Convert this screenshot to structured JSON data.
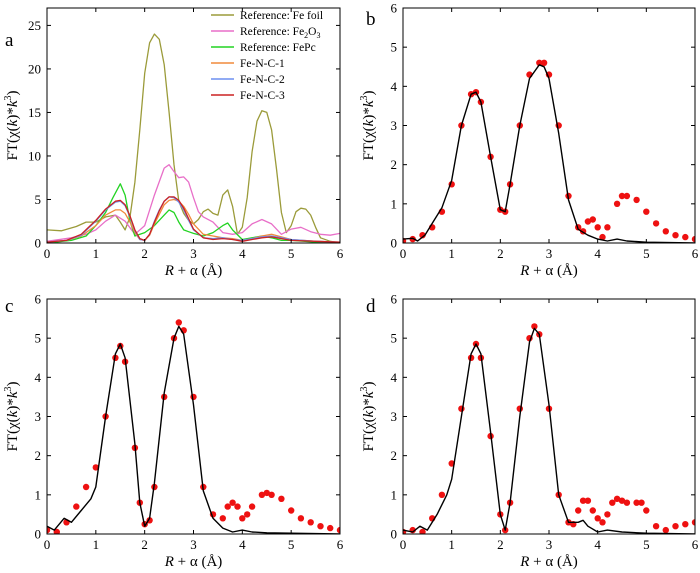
{
  "chart_data": [
    {
      "panel": "a",
      "type": "line",
      "xlabel_main": "R",
      "xlabel_rest": " + α (Å)",
      "ylabel_main": "FT(χ(",
      "ylabel_k": "k",
      "ylabel_mid": ")*",
      "ylabel_k2": "k",
      "ylabel_exp": "3",
      "ylabel_end": ")",
      "xlim": [
        0,
        6
      ],
      "ylim": [
        0,
        27
      ],
      "xticks": [
        0,
        1,
        2,
        3,
        4,
        5,
        6
      ],
      "yticks": [
        0,
        5,
        10,
        15,
        20,
        25
      ],
      "legend_position": "top-right",
      "series": [
        {
          "name": "Reference: Fe foil",
          "color": "#9b9b3a",
          "x": [
            0,
            0.3,
            0.6,
            0.8,
            1.0,
            1.2,
            1.4,
            1.5,
            1.6,
            1.7,
            1.8,
            1.9,
            2.0,
            2.1,
            2.2,
            2.3,
            2.4,
            2.5,
            2.6,
            2.7,
            2.8,
            2.9,
            3.0,
            3.1,
            3.2,
            3.3,
            3.4,
            3.5,
            3.6,
            3.7,
            3.8,
            3.9,
            4.0,
            4.1,
            4.2,
            4.3,
            4.4,
            4.5,
            4.6,
            4.7,
            4.8,
            4.9,
            5.0,
            5.1,
            5.2,
            5.3,
            5.4,
            5.5,
            5.6,
            5.8,
            6.0
          ],
          "y": [
            1.5,
            1.4,
            1.9,
            2.4,
            2.4,
            3.0,
            3.2,
            2.4,
            1.5,
            3.0,
            7.0,
            13.0,
            19.5,
            23.0,
            24.0,
            23.4,
            20.5,
            15.0,
            9.0,
            4.8,
            3.4,
            2.6,
            2.2,
            2.7,
            3.6,
            3.9,
            3.4,
            3.2,
            5.5,
            6.1,
            4.2,
            1.0,
            1.8,
            5.2,
            10.5,
            14.0,
            15.2,
            15.0,
            13.0,
            8.5,
            3.5,
            1.2,
            2.0,
            3.6,
            4.0,
            3.9,
            3.2,
            1.8,
            0.6,
            0.2,
            0.0
          ]
        },
        {
          "name": "Reference: Fe2O3",
          "display_name": "Reference: Fe",
          "name_sub": "2",
          "name_rest": "O",
          "name_sub2": "3",
          "color": "#e86fc8",
          "x": [
            0,
            0.5,
            0.8,
            1.0,
            1.2,
            1.4,
            1.6,
            1.8,
            2.0,
            2.2,
            2.4,
            2.5,
            2.6,
            2.7,
            2.8,
            2.9,
            3.0,
            3.1,
            3.2,
            3.4,
            3.6,
            3.8,
            4.0,
            4.2,
            4.4,
            4.6,
            4.8,
            5.0,
            5.2,
            5.4,
            5.6,
            5.8,
            6.0
          ],
          "y": [
            0.2,
            0.6,
            1.0,
            1.5,
            2.5,
            3.2,
            2.5,
            1.0,
            2.0,
            5.5,
            8.6,
            9.0,
            8.2,
            7.5,
            7.6,
            7.0,
            5.2,
            3.6,
            3.0,
            2.4,
            1.2,
            1.0,
            1.2,
            2.2,
            2.7,
            2.2,
            1.0,
            1.6,
            1.8,
            1.3,
            1.0,
            0.9,
            1.1
          ]
        },
        {
          "name": "Reference: FePc",
          "color": "#22d322",
          "x": [
            0,
            0.5,
            0.8,
            1.0,
            1.2,
            1.35,
            1.5,
            1.6,
            1.7,
            1.8,
            2.0,
            2.2,
            2.4,
            2.5,
            2.6,
            2.7,
            2.8,
            2.9,
            3.0,
            3.2,
            3.4,
            3.6,
            3.7,
            3.8,
            4.0,
            4.2,
            4.4,
            4.6,
            4.8,
            5.0,
            5.5,
            6.0
          ],
          "y": [
            0.0,
            0.3,
            0.8,
            2.0,
            3.5,
            5.2,
            6.8,
            5.5,
            2.5,
            0.8,
            1.2,
            2.0,
            3.2,
            3.8,
            3.5,
            2.4,
            1.5,
            1.3,
            1.1,
            0.8,
            1.2,
            2.0,
            2.3,
            1.5,
            0.4,
            0.6,
            0.8,
            0.6,
            0.3,
            0.3,
            0.1,
            0.0
          ]
        },
        {
          "name": "Fe-N-C-1",
          "color": "#f08a3c",
          "x": [
            0,
            0.4,
            0.7,
            1.0,
            1.2,
            1.4,
            1.5,
            1.6,
            1.7,
            1.8,
            1.9,
            2.0,
            2.1,
            2.2,
            2.3,
            2.4,
            2.5,
            2.6,
            2.7,
            2.8,
            2.9,
            3.0,
            3.2,
            3.4,
            3.6,
            3.8,
            4.0,
            4.2,
            4.4,
            4.6,
            4.8,
            5.0,
            5.5,
            6.0
          ],
          "y": [
            0.1,
            0.3,
            0.8,
            2.0,
            3.2,
            3.8,
            3.8,
            3.4,
            2.4,
            1.2,
            0.4,
            0.3,
            0.9,
            2.2,
            3.3,
            4.4,
            4.9,
            5.0,
            4.8,
            4.2,
            3.3,
            2.2,
            1.0,
            0.8,
            0.6,
            0.5,
            0.3,
            0.5,
            0.8,
            1.0,
            0.7,
            0.4,
            0.2,
            0.1
          ]
        },
        {
          "name": "Fe-N-C-2",
          "color": "#6d8ff0",
          "x": [
            0,
            0.4,
            0.7,
            1.0,
            1.2,
            1.4,
            1.5,
            1.6,
            1.7,
            1.8,
            1.9,
            2.0,
            2.1,
            2.2,
            2.3,
            2.4,
            2.5,
            2.6,
            2.7,
            2.8,
            2.9,
            3.0,
            3.2,
            3.4,
            3.6,
            3.8,
            4.0,
            4.2,
            4.4,
            4.6,
            4.8,
            5.0,
            5.5,
            6.0
          ],
          "y": [
            0.1,
            0.3,
            0.9,
            2.5,
            3.8,
            4.7,
            4.8,
            4.3,
            3.0,
            1.4,
            0.4,
            0.3,
            1.0,
            2.5,
            3.8,
            4.8,
            5.3,
            5.2,
            4.7,
            3.8,
            2.6,
            1.5,
            0.6,
            0.5,
            0.6,
            0.4,
            0.3,
            0.5,
            0.7,
            0.8,
            0.6,
            0.4,
            0.2,
            0.1
          ]
        },
        {
          "name": "Fe-N-C-3",
          "color": "#cc2222",
          "x": [
            0,
            0.4,
            0.7,
            1.0,
            1.2,
            1.4,
            1.5,
            1.6,
            1.7,
            1.8,
            1.9,
            2.0,
            2.1,
            2.2,
            2.3,
            2.4,
            2.5,
            2.6,
            2.7,
            2.8,
            2.9,
            3.0,
            3.2,
            3.4,
            3.6,
            3.8,
            4.0,
            4.2,
            4.4,
            4.6,
            4.8,
            5.0,
            5.5,
            6.0
          ],
          "y": [
            0.1,
            0.3,
            1.0,
            2.6,
            3.9,
            4.8,
            4.9,
            4.4,
            3.1,
            1.5,
            0.5,
            0.3,
            1.0,
            2.4,
            3.7,
            4.8,
            5.3,
            5.3,
            4.9,
            4.0,
            2.8,
            1.6,
            0.6,
            0.4,
            0.5,
            0.4,
            0.2,
            0.4,
            0.6,
            0.7,
            0.5,
            0.3,
            0.2,
            0.1
          ]
        }
      ]
    },
    {
      "panel": "b",
      "type": "line+scatter",
      "xlabel_main": "R",
      "xlabel_rest": " + α (Å)",
      "ylabel_main": "FT(χ(",
      "ylabel_k": "k",
      "ylabel_mid": ")*",
      "ylabel_k2": "k",
      "ylabel_exp": "3",
      "ylabel_end": ")",
      "xlim": [
        0,
        6
      ],
      "ylim": [
        0,
        6
      ],
      "xticks": [
        0,
        1,
        2,
        3,
        4,
        5,
        6
      ],
      "yticks": [
        0,
        1,
        2,
        3,
        4,
        5,
        6
      ],
      "series": [
        {
          "kind": "points",
          "color": "#ee1111",
          "x": [
            0,
            0.2,
            0.4,
            0.6,
            0.8,
            1.0,
            1.2,
            1.4,
            1.5,
            1.6,
            1.8,
            2.0,
            2.1,
            2.2,
            2.4,
            2.6,
            2.8,
            2.9,
            3.0,
            3.2,
            3.4,
            3.6,
            3.7,
            3.8,
            3.9,
            4.0,
            4.1,
            4.2,
            4.4,
            4.5,
            4.6,
            4.8,
            5.0,
            5.2,
            5.4,
            5.6,
            5.8,
            6.0
          ],
          "y": [
            0.05,
            0.1,
            0.2,
            0.4,
            0.8,
            1.5,
            3.0,
            3.8,
            3.85,
            3.6,
            2.2,
            0.85,
            0.8,
            1.5,
            3.0,
            4.3,
            4.6,
            4.6,
            4.3,
            3.0,
            1.2,
            0.4,
            0.3,
            0.55,
            0.6,
            0.4,
            0.15,
            0.4,
            1.0,
            1.2,
            1.2,
            1.1,
            0.8,
            0.5,
            0.3,
            0.2,
            0.15,
            0.1
          ]
        },
        {
          "kind": "line",
          "color": "#000000",
          "x": [
            0,
            0.2,
            0.3,
            0.45,
            0.6,
            0.8,
            1.0,
            1.2,
            1.4,
            1.5,
            1.6,
            1.8,
            2.0,
            2.1,
            2.2,
            2.4,
            2.6,
            2.8,
            2.9,
            3.0,
            3.2,
            3.4,
            3.6,
            3.8,
            4.0,
            4.2,
            4.4,
            4.6,
            5.0,
            5.5,
            6.0
          ],
          "y": [
            0.1,
            0.12,
            0.05,
            0.2,
            0.5,
            0.9,
            1.6,
            3.0,
            3.8,
            3.85,
            3.6,
            2.2,
            0.85,
            0.8,
            1.5,
            3.0,
            4.2,
            4.55,
            4.5,
            4.2,
            2.8,
            1.1,
            0.35,
            0.2,
            0.1,
            0.05,
            0.1,
            0.05,
            0.02,
            0.01,
            0.0
          ]
        }
      ]
    },
    {
      "panel": "c",
      "type": "line+scatter",
      "xlabel_main": "R",
      "xlabel_rest": " + α (Å)",
      "ylabel_main": "FT(χ(",
      "ylabel_k": "k",
      "ylabel_mid": ")*",
      "ylabel_k2": "k",
      "ylabel_exp": "3",
      "ylabel_end": ")",
      "xlim": [
        0,
        6
      ],
      "ylim": [
        0,
        6
      ],
      "xticks": [
        0,
        1,
        2,
        3,
        4,
        5,
        6
      ],
      "yticks": [
        0,
        1,
        2,
        3,
        4,
        5,
        6
      ],
      "series": [
        {
          "kind": "points",
          "color": "#ee1111",
          "x": [
            0,
            0.2,
            0.4,
            0.6,
            0.8,
            1.0,
            1.2,
            1.4,
            1.5,
            1.6,
            1.8,
            1.9,
            2.0,
            2.1,
            2.2,
            2.4,
            2.6,
            2.7,
            2.8,
            3.0,
            3.2,
            3.4,
            3.6,
            3.7,
            3.8,
            3.9,
            4.0,
            4.1,
            4.2,
            4.4,
            4.5,
            4.6,
            4.8,
            5.0,
            5.2,
            5.4,
            5.6,
            5.8,
            6.0
          ],
          "y": [
            0.1,
            0.05,
            0.3,
            0.7,
            1.2,
            1.7,
            3.0,
            4.5,
            4.8,
            4.4,
            2.2,
            0.8,
            0.25,
            0.35,
            1.2,
            3.5,
            5.0,
            5.4,
            5.2,
            3.5,
            1.2,
            0.5,
            0.4,
            0.7,
            0.8,
            0.7,
            0.4,
            0.5,
            0.7,
            1.0,
            1.05,
            1.0,
            0.9,
            0.6,
            0.4,
            0.3,
            0.2,
            0.15,
            0.1
          ]
        },
        {
          "kind": "line",
          "color": "#000000",
          "x": [
            0,
            0.15,
            0.35,
            0.5,
            0.7,
            0.9,
            1.0,
            1.2,
            1.4,
            1.5,
            1.6,
            1.8,
            1.9,
            2.0,
            2.1,
            2.2,
            2.4,
            2.6,
            2.7,
            2.8,
            3.0,
            3.2,
            3.4,
            3.6,
            3.8,
            4.0,
            4.2,
            4.5,
            5.0,
            5.5,
            6.0
          ],
          "y": [
            0.2,
            0.1,
            0.4,
            0.3,
            0.6,
            0.9,
            1.2,
            3.0,
            4.6,
            4.85,
            4.5,
            2.3,
            0.8,
            0.2,
            0.4,
            1.3,
            3.6,
            5.0,
            5.3,
            5.1,
            3.3,
            1.1,
            0.4,
            0.15,
            0.05,
            0.1,
            0.05,
            0.03,
            0.02,
            0.01,
            0.0
          ]
        }
      ]
    },
    {
      "panel": "d",
      "type": "line+scatter",
      "xlabel_main": "R",
      "xlabel_rest": " + α (Å)",
      "ylabel_main": "FT(χ(",
      "ylabel_k": "k",
      "ylabel_mid": ")*",
      "ylabel_k2": "k",
      "ylabel_exp": "3",
      "ylabel_end": ")",
      "xlim": [
        0,
        6
      ],
      "ylim": [
        0,
        6
      ],
      "xticks": [
        0,
        1,
        2,
        3,
        4,
        5,
        6
      ],
      "yticks": [
        0,
        1,
        2,
        3,
        4,
        5,
        6
      ],
      "series": [
        {
          "kind": "points",
          "color": "#ee1111",
          "x": [
            0,
            0.2,
            0.4,
            0.6,
            0.8,
            1.0,
            1.2,
            1.4,
            1.5,
            1.6,
            1.8,
            2.0,
            2.1,
            2.2,
            2.4,
            2.6,
            2.7,
            2.8,
            3.0,
            3.2,
            3.4,
            3.5,
            3.6,
            3.7,
            3.8,
            3.9,
            4.0,
            4.1,
            4.2,
            4.3,
            4.4,
            4.5,
            4.6,
            4.8,
            4.9,
            5.0,
            5.2,
            5.4,
            5.6,
            5.8,
            6.0
          ],
          "y": [
            0.05,
            0.1,
            0.05,
            0.4,
            1.0,
            1.8,
            3.2,
            4.5,
            4.85,
            4.5,
            2.5,
            0.5,
            0.1,
            0.8,
            3.2,
            5.0,
            5.3,
            5.1,
            3.2,
            1.0,
            0.3,
            0.25,
            0.6,
            0.85,
            0.85,
            0.6,
            0.4,
            0.3,
            0.5,
            0.8,
            0.9,
            0.85,
            0.8,
            0.8,
            0.8,
            0.6,
            0.2,
            0.1,
            0.2,
            0.25,
            0.3
          ]
        },
        {
          "kind": "line",
          "color": "#000000",
          "x": [
            0,
            0.2,
            0.35,
            0.5,
            0.7,
            0.9,
            1.0,
            1.2,
            1.4,
            1.5,
            1.6,
            1.8,
            2.0,
            2.1,
            2.2,
            2.4,
            2.6,
            2.7,
            2.8,
            3.0,
            3.2,
            3.4,
            3.6,
            3.7,
            3.8,
            4.0,
            4.2,
            4.5,
            5.0,
            5.5,
            6.0
          ],
          "y": [
            0.1,
            0.05,
            0.2,
            0.1,
            0.5,
            1.0,
            1.4,
            3.0,
            4.6,
            4.85,
            4.6,
            2.6,
            0.5,
            0.1,
            0.8,
            3.0,
            4.9,
            5.25,
            5.1,
            3.3,
            1.0,
            0.3,
            0.3,
            0.35,
            0.2,
            0.05,
            0.1,
            0.05,
            0.02,
            0.01,
            0.0
          ]
        }
      ]
    }
  ]
}
